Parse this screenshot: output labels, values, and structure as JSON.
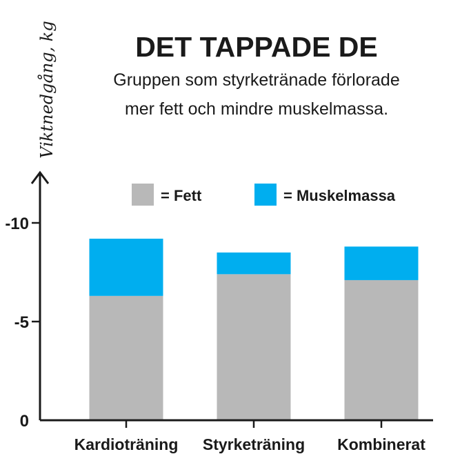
{
  "chart_data": {
    "type": "bar",
    "stacked": true,
    "title": "DET TAPPADE DE",
    "subtitle_lines": [
      "Gruppen som styrketränade förlorade",
      "mer fett och mindre muskelmassa."
    ],
    "ylabel": "Viktnedgång, kg",
    "xlabel": "",
    "categories": [
      "Kardioträning",
      "Styrketräning",
      "Kombinerat"
    ],
    "series": [
      {
        "name": "Fett",
        "legend_label": "= Fett",
        "color": "#b8b8b8",
        "values": [
          -6.3,
          -7.4,
          -7.1
        ]
      },
      {
        "name": "Muskelmassa",
        "legend_label": "= Muskelmassa",
        "color": "#00aeef",
        "values": [
          -2.9,
          -1.1,
          -1.7
        ]
      }
    ],
    "yticks": [
      {
        "value": 0,
        "label": "0"
      },
      {
        "value": -5,
        "label": "-5"
      },
      {
        "value": -10,
        "label": "-10"
      }
    ],
    "ylim": [
      0,
      -10
    ],
    "grid": false,
    "legend_position": "top-center",
    "axis_color": "#1a1a1a"
  }
}
